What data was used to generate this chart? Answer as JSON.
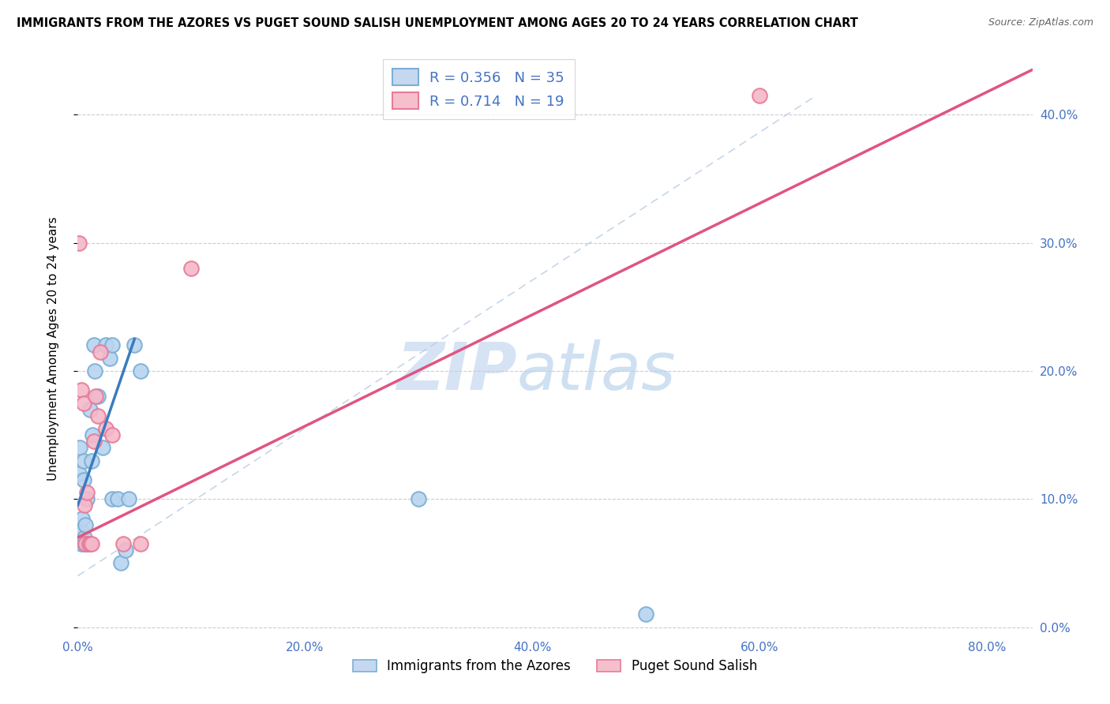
{
  "title": "IMMIGRANTS FROM THE AZORES VS PUGET SOUND SALISH UNEMPLOYMENT AMONG AGES 20 TO 24 YEARS CORRELATION CHART",
  "source": "Source: ZipAtlas.com",
  "ylabel_label": "Unemployment Among Ages 20 to 24 years",
  "legend_bottom": [
    "Immigrants from the Azores",
    "Puget Sound Salish"
  ],
  "legend_r1": "R = 0.356",
  "legend_n1": "N = 35",
  "legend_r2": "R = 0.714",
  "legend_n2": "N = 19",
  "watermark_zip": "ZIP",
  "watermark_atlas": "atlas",
  "xlim": [
    0.0,
    0.84
  ],
  "ylim": [
    -0.005,
    0.44
  ],
  "x_ticks": [
    0.0,
    0.2,
    0.4,
    0.6,
    0.8
  ],
  "y_ticks": [
    0.0,
    0.1,
    0.2,
    0.3,
    0.4
  ],
  "blue_scatter_x": [
    0.001,
    0.002,
    0.003,
    0.003,
    0.004,
    0.005,
    0.005,
    0.006,
    0.006,
    0.007,
    0.007,
    0.008,
    0.008,
    0.009,
    0.01,
    0.01,
    0.011,
    0.012,
    0.013,
    0.014,
    0.015,
    0.018,
    0.022,
    0.025,
    0.028,
    0.03,
    0.03,
    0.035,
    0.038,
    0.042,
    0.045,
    0.05,
    0.055,
    0.3,
    0.5
  ],
  "blue_scatter_y": [
    0.12,
    0.14,
    0.065,
    0.075,
    0.085,
    0.115,
    0.13,
    0.065,
    0.07,
    0.065,
    0.08,
    0.065,
    0.1,
    0.065,
    0.065,
    0.065,
    0.17,
    0.13,
    0.15,
    0.22,
    0.2,
    0.18,
    0.14,
    0.22,
    0.21,
    0.22,
    0.1,
    0.1,
    0.05,
    0.06,
    0.1,
    0.22,
    0.2,
    0.1,
    0.01
  ],
  "pink_scatter_x": [
    0.001,
    0.003,
    0.005,
    0.006,
    0.007,
    0.008,
    0.01,
    0.011,
    0.012,
    0.014,
    0.016,
    0.018,
    0.02,
    0.025,
    0.03,
    0.04,
    0.055,
    0.6,
    0.1
  ],
  "pink_scatter_y": [
    0.3,
    0.185,
    0.175,
    0.095,
    0.065,
    0.105,
    0.065,
    0.065,
    0.065,
    0.145,
    0.18,
    0.165,
    0.215,
    0.155,
    0.15,
    0.065,
    0.065,
    0.415,
    0.28
  ],
  "blue_line_x": [
    0.0,
    0.05
  ],
  "blue_line_y": [
    0.095,
    0.225
  ],
  "pink_line_x": [
    0.0,
    0.84
  ],
  "pink_line_y": [
    0.07,
    0.435
  ],
  "blue_dashed_line_x": [
    0.0,
    0.65
  ],
  "blue_dashed_line_y": [
    0.04,
    0.415
  ],
  "blue_scatter_facecolor": "#b8d4f0",
  "blue_scatter_edgecolor": "#7bafd4",
  "pink_scatter_facecolor": "#f5b8c8",
  "pink_scatter_edgecolor": "#e87a9a",
  "blue_line_color": "#3a7bbf",
  "pink_line_color": "#e05580",
  "dashed_line_color": "#b8cce4",
  "legend_patch_blue_face": "#c5d8f0",
  "legend_patch_blue_edge": "#7bafd4",
  "legend_patch_pink_face": "#f5c0cc",
  "legend_patch_pink_edge": "#e87a9a",
  "tick_color": "#4472c4",
  "title_fontsize": 10.5,
  "axis_fontsize": 11,
  "tick_fontsize": 11
}
